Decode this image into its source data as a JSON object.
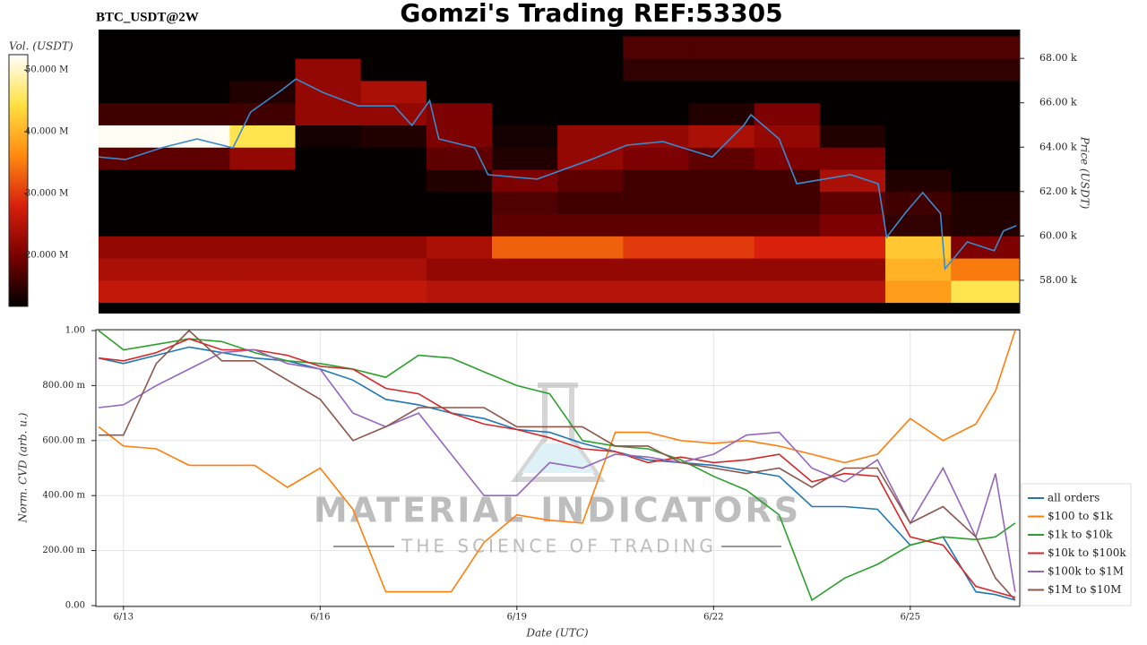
{
  "chart_data": [
    {
      "type": "heatmap",
      "title": "Gomzi's Trading REF:53305",
      "subtitle": "BTC_USDT@2W",
      "y_label": "Price (USDT)",
      "colorbar_label": "Vol. (USDT)",
      "xlim": [
        12.62,
        26.67
      ],
      "ylim": [
        56500,
        69300
      ],
      "yticks": [
        {
          "value": 58000,
          "label": "58.00 k"
        },
        {
          "value": 60000,
          "label": "60.00 k"
        },
        {
          "value": 62000,
          "label": "62.00 k"
        },
        {
          "value": 64000,
          "label": "64.00 k"
        },
        {
          "value": 66000,
          "label": "66.00 k"
        },
        {
          "value": 68000,
          "label": "68.00 k"
        }
      ],
      "clim": [
        11700000,
        52500000
      ],
      "cticks": [
        {
          "value": 20000000,
          "label": "20.000 M"
        },
        {
          "value": 30000000,
          "label": "30.000 M"
        },
        {
          "value": 40000000,
          "label": "40.000 M"
        },
        {
          "value": 50000000,
          "label": "50.000 M"
        }
      ],
      "colormap": [
        "#000000",
        "#7a0000",
        "#d8200c",
        "#ff8a10",
        "#ffe040",
        "#ffffff"
      ],
      "bins_x": [
        12.62,
        13.62,
        14.62,
        15.62,
        16.62,
        17.62,
        18.62,
        19.62,
        20.62,
        21.62,
        22.62,
        23.62,
        24.62,
        25.62,
        26.67
      ],
      "bins_y": [
        57000,
        58000,
        59000,
        60000,
        61000,
        62000,
        63000,
        64000,
        65000,
        66000,
        67000,
        68000,
        69000
      ],
      "z": [
        [
          26000000,
          26000000,
          26000000,
          26000000,
          26000000,
          25000000,
          25000000,
          25000000,
          25000000,
          25000000,
          25000000,
          25000000,
          38000000,
          45000000
        ],
        [
          24000000,
          24000000,
          24000000,
          24000000,
          24000000,
          22000000,
          22000000,
          22000000,
          22000000,
          22000000,
          22000000,
          22000000,
          40000000,
          35000000
        ],
        [
          22000000,
          22000000,
          22000000,
          22000000,
          22000000,
          24000000,
          33000000,
          33000000,
          30000000,
          30000000,
          28000000,
          28000000,
          42000000,
          20000000
        ],
        [
          12000000,
          12000000,
          12000000,
          12000000,
          12000000,
          12000000,
          18000000,
          18000000,
          18000000,
          18000000,
          18000000,
          20000000,
          15000000,
          14000000
        ],
        [
          12000000,
          12000000,
          12000000,
          12000000,
          12000000,
          12000000,
          17000000,
          16000000,
          16000000,
          16000000,
          16000000,
          18000000,
          16000000,
          14000000
        ],
        [
          12000000,
          12000000,
          12000000,
          12000000,
          12000000,
          14000000,
          20000000,
          18000000,
          16000000,
          16000000,
          16000000,
          24000000,
          14000000,
          12000000
        ],
        [
          18000000,
          18000000,
          22000000,
          12000000,
          12000000,
          18000000,
          14000000,
          22000000,
          20000000,
          18000000,
          20000000,
          20000000,
          12000000,
          12000000
        ],
        [
          52000000,
          52000000,
          45000000,
          13000000,
          14000000,
          20000000,
          13000000,
          22000000,
          22000000,
          24000000,
          22000000,
          14000000,
          12000000,
          12000000
        ],
        [
          16000000,
          16000000,
          16000000,
          22000000,
          22000000,
          20000000,
          12000000,
          12000000,
          12000000,
          14000000,
          20000000,
          12000000,
          12000000,
          12000000
        ],
        [
          12000000,
          12000000,
          14000000,
          22000000,
          24000000,
          12000000,
          12000000,
          12000000,
          12000000,
          12000000,
          12000000,
          12000000,
          12000000,
          12000000
        ],
        [
          12000000,
          12000000,
          12000000,
          22000000,
          12000000,
          12000000,
          12000000,
          12000000,
          15000000,
          15000000,
          15000000,
          15000000,
          15000000,
          15000000
        ],
        [
          12000000,
          12000000,
          12000000,
          12000000,
          12000000,
          12000000,
          12000000,
          12000000,
          17000000,
          17000000,
          17000000,
          17000000,
          17000000,
          17000000
        ]
      ],
      "series": [
        {
          "color": "#3a8ad0",
          "x": [
            12.62,
            13.03,
            13.58,
            14.12,
            14.67,
            14.94,
            15.42,
            15.63,
            16.04,
            16.58,
            17.13,
            17.4,
            17.67,
            17.81,
            18.36,
            18.56,
            19.31,
            20.13,
            20.68,
            21.23,
            21.98,
            22.46,
            22.57,
            23.0,
            23.27,
            24.09,
            24.51,
            24.64,
            24.92,
            25.19,
            25.46,
            25.53,
            25.87,
            26.28,
            26.42,
            26.62
          ],
          "values": [
            63560,
            63440,
            63970,
            64370,
            63970,
            65580,
            66590,
            67070,
            66470,
            65860,
            65860,
            64980,
            66100,
            64370,
            63970,
            62760,
            62560,
            63440,
            64090,
            64250,
            63560,
            64980,
            65460,
            64370,
            62350,
            62760,
            62350,
            59940,
            61020,
            61950,
            61020,
            58520,
            59730,
            59330,
            60220,
            60460
          ]
        }
      ]
    },
    {
      "type": "line",
      "x_label": "Date (UTC)",
      "y_label": "Norm. CVD (arb. u.)",
      "xlim": [
        12.62,
        26.67
      ],
      "xticks": [
        {
          "value": 13,
          "label": "6/13"
        },
        {
          "value": 16,
          "label": "6/16"
        },
        {
          "value": 19,
          "label": "6/19"
        },
        {
          "value": 22,
          "label": "6/22"
        },
        {
          "value": 25,
          "label": "6/25"
        }
      ],
      "ylim": [
        0,
        1
      ],
      "yticks": [
        {
          "value": 0,
          "label": "0.00"
        },
        {
          "value": 0.2,
          "label": "200.00 m"
        },
        {
          "value": 0.4,
          "label": "400.00 m"
        },
        {
          "value": 0.6,
          "label": "600.00 m"
        },
        {
          "value": 0.8,
          "label": "800.00 m"
        },
        {
          "value": 1,
          "label": "1.00"
        }
      ],
      "grid": true,
      "legend": "right",
      "watermark": [
        "MATERIAL INDICATORS",
        "THE SCIENCE OF TRADING"
      ],
      "x": [
        12.62,
        13.0,
        13.5,
        14.0,
        14.5,
        15.0,
        15.5,
        16.0,
        16.5,
        17.0,
        17.5,
        18.0,
        18.5,
        19.0,
        19.5,
        20.0,
        20.5,
        21.0,
        21.5,
        22.0,
        22.5,
        23.0,
        23.5,
        24.0,
        24.5,
        25.0,
        25.5,
        26.0,
        26.3,
        26.6
      ],
      "series": [
        {
          "name": "all orders",
          "color": "#1f77b4",
          "values": [
            0.9,
            0.88,
            0.91,
            0.94,
            0.92,
            0.9,
            0.89,
            0.86,
            0.82,
            0.75,
            0.73,
            0.7,
            0.68,
            0.64,
            0.63,
            0.59,
            0.56,
            0.53,
            0.52,
            0.51,
            0.49,
            0.47,
            0.36,
            0.36,
            0.35,
            0.22,
            0.25,
            0.05,
            0.04,
            0.02
          ]
        },
        {
          "name": "$100 to $1k",
          "color": "#ff7f0e",
          "values": [
            0.65,
            0.58,
            0.57,
            0.51,
            0.51,
            0.51,
            0.43,
            0.5,
            0.35,
            0.05,
            0.05,
            0.05,
            0.23,
            0.33,
            0.31,
            0.3,
            0.63,
            0.63,
            0.6,
            0.59,
            0.6,
            0.58,
            0.55,
            0.52,
            0.55,
            0.68,
            0.6,
            0.66,
            0.78,
            1.0
          ]
        },
        {
          "name": "$1k to $10k",
          "color": "#2ca02c",
          "values": [
            1.0,
            0.93,
            0.95,
            0.97,
            0.96,
            0.92,
            0.89,
            0.88,
            0.86,
            0.83,
            0.91,
            0.9,
            0.85,
            0.8,
            0.77,
            0.6,
            0.58,
            0.57,
            0.53,
            0.47,
            0.42,
            0.33,
            0.02,
            0.1,
            0.15,
            0.22,
            0.25,
            0.24,
            0.25,
            0.3
          ]
        },
        {
          "name": "$10k to $100k",
          "color": "#d62728",
          "values": [
            0.9,
            0.89,
            0.92,
            0.97,
            0.93,
            0.93,
            0.91,
            0.87,
            0.86,
            0.79,
            0.77,
            0.7,
            0.66,
            0.64,
            0.61,
            0.57,
            0.56,
            0.52,
            0.54,
            0.52,
            0.53,
            0.55,
            0.45,
            0.48,
            0.47,
            0.25,
            0.22,
            0.07,
            0.05,
            0.03
          ]
        },
        {
          "name": "$100k to $1M",
          "color": "#9467bd",
          "values": [
            0.72,
            0.73,
            0.8,
            0.86,
            0.92,
            0.93,
            0.88,
            0.86,
            0.7,
            0.65,
            0.7,
            0.55,
            0.4,
            0.4,
            0.52,
            0.5,
            0.55,
            0.54,
            0.52,
            0.55,
            0.62,
            0.63,
            0.5,
            0.45,
            0.53,
            0.3,
            0.5,
            0.25,
            0.48,
            0.05
          ]
        },
        {
          "name": "$1M to $10M",
          "color": "#8c564b",
          "values": [
            0.62,
            0.62,
            0.88,
            1.0,
            0.89,
            0.89,
            0.82,
            0.75,
            0.6,
            0.65,
            0.72,
            0.72,
            0.72,
            0.65,
            0.65,
            0.65,
            0.58,
            0.58,
            0.52,
            0.5,
            0.48,
            0.5,
            0.43,
            0.5,
            0.5,
            0.3,
            0.36,
            0.25,
            0.1,
            0.02
          ]
        }
      ]
    }
  ]
}
